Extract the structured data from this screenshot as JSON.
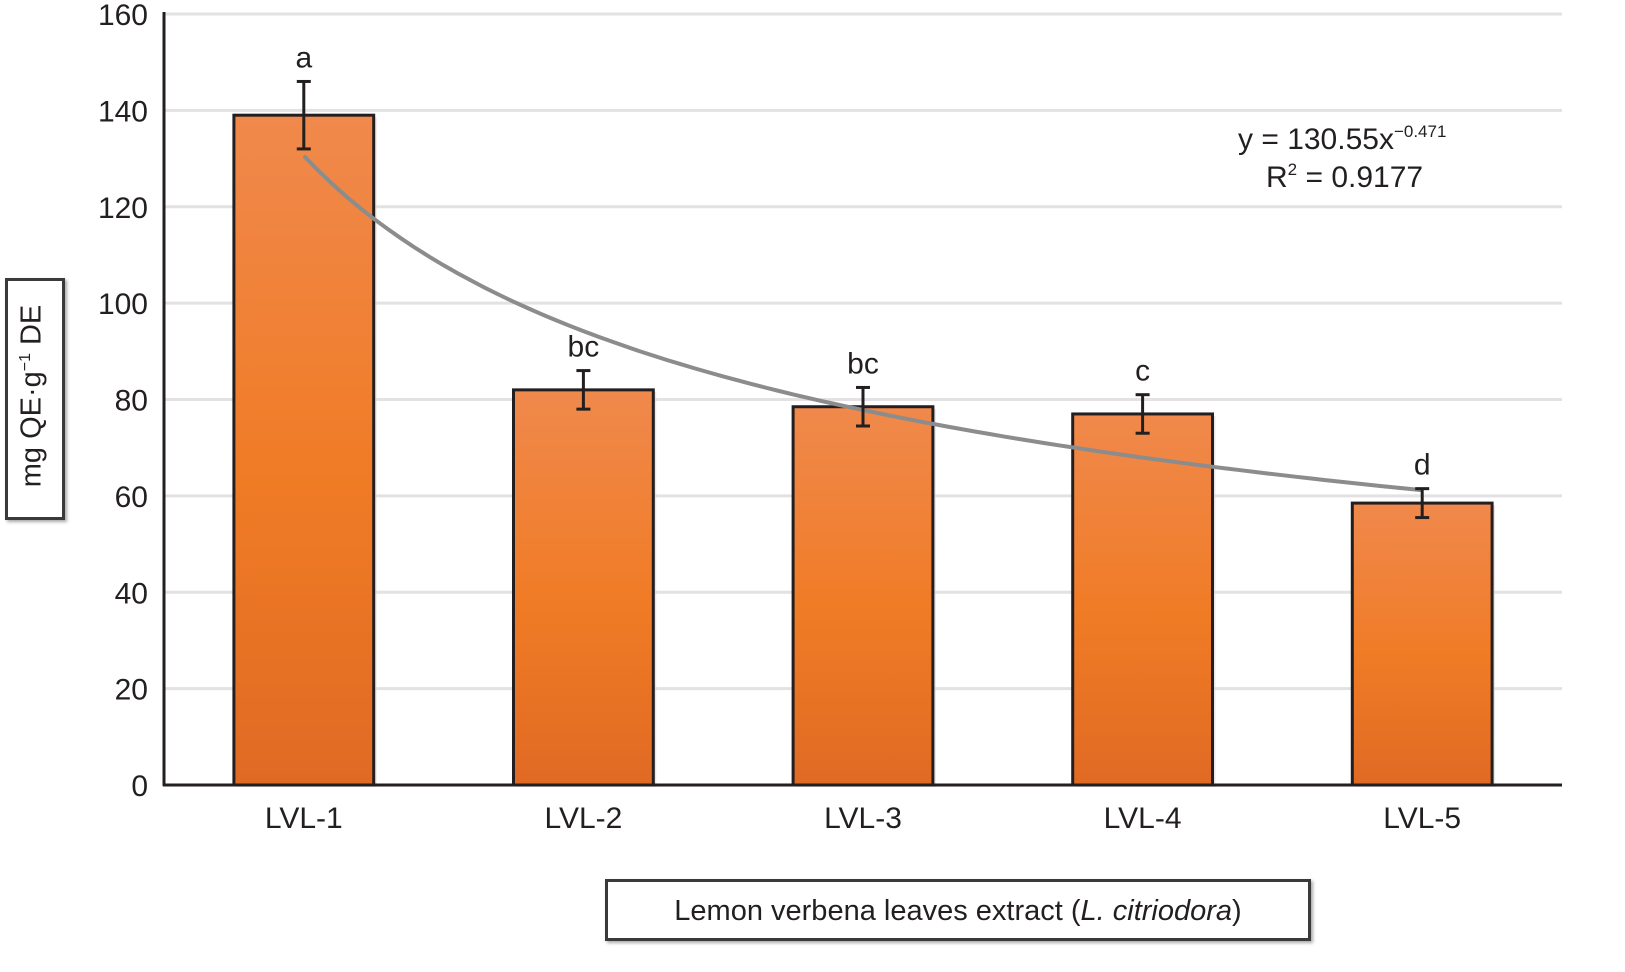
{
  "chart_data": {
    "type": "bar",
    "title": "",
    "xlabel": "Lemon verbena leaves extract (L. citriodora)",
    "xlabel_parts": {
      "prefix": "Lemon verbena leaves extract (",
      "italic": "L. citriodora",
      "suffix": ")"
    },
    "ylabel": "mg QE·g−1 DE",
    "ylabel_parts": {
      "main": "mg QE·g",
      "sup": "−1",
      "tail": " DE"
    },
    "ylim": [
      0,
      160
    ],
    "yticks": [
      "0",
      "20",
      "40",
      "60",
      "80",
      "100",
      "120",
      "140",
      "160"
    ],
    "grid": true,
    "categories": [
      "LVL-1",
      "LVL-2",
      "LVL-3",
      "LVL-4",
      "LVL-5"
    ],
    "values": [
      139,
      82,
      78.5,
      77,
      58.5
    ],
    "errors": [
      7,
      4,
      4,
      4,
      3
    ],
    "significance_letters": [
      "a",
      "bc",
      "bc",
      "c",
      "d"
    ],
    "trendline": {
      "type": "power",
      "a": 130.55,
      "b": -0.471,
      "equation_prefix": "y = 130.55x",
      "equation_exp": "−0.471",
      "r2_prefix": "R",
      "r2_sup": "2",
      "r2_suffix": " = 0.9177"
    },
    "colors": {
      "bar_top": "#f0894c",
      "bar_mid": "#f07b25",
      "bar_bottom": "#e06a24",
      "bar_edge": "#231f20",
      "trend": "#8c8c8c",
      "grid": "#e3e1e1"
    }
  }
}
